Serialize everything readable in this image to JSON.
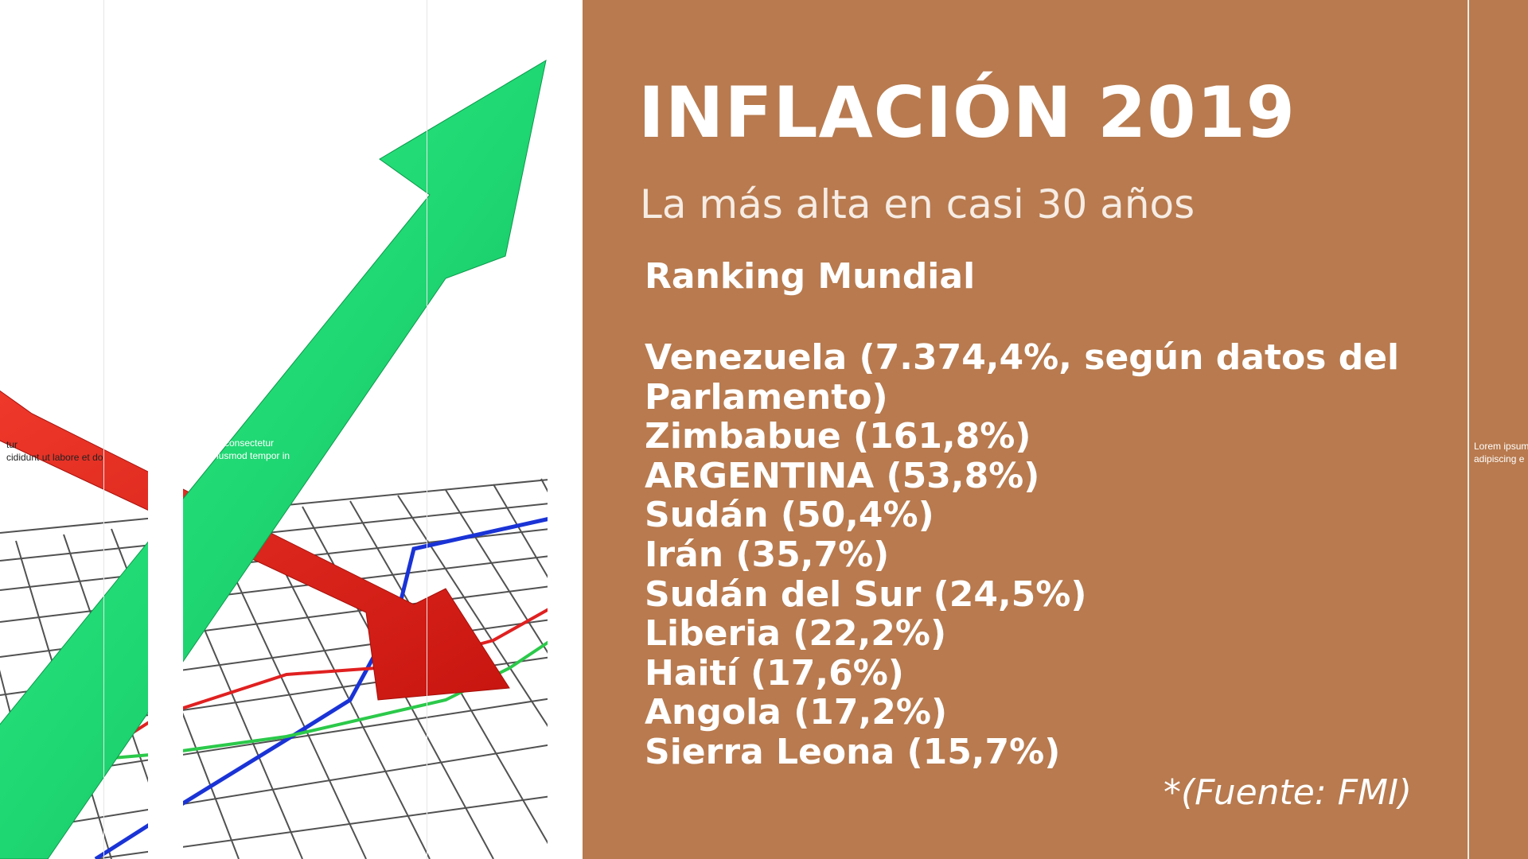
{
  "slide": {
    "title": "INFLACIÓN 2019",
    "subtitle": "La más alta en casi 30 años",
    "ranking_heading": "Ranking Mundial",
    "ranking": [
      "Venezuela (7.374,4%, según datos del Parlamento)",
      "Zimbabue (161,8%)",
      "ARGENTINA (53,8%)",
      "Sudán (50,4%)",
      "Irán (35,7%)",
      "Sudán del Sur (24,5%)",
      "Liberia (22,2%)",
      "Haití (17,6%)",
      "Angola (17,2%)",
      "Sierra Leona (15,7%)"
    ],
    "source": "*(Fuente: FMI)"
  },
  "background_fragments": {
    "left_a": "tur\ncididunt ut labore et do",
    "left_b": "t, consectetur\niusmod tempor in",
    "right": "Lorem ipsum\nadipiscing e"
  },
  "colors": {
    "panel": "#B87A4E",
    "green_arrow": "#1FD873",
    "red_arrow": "#E0231B",
    "blue_line": "#1A33D6",
    "green_line": "#2BC94A",
    "red_line": "#E02020"
  },
  "icons": [
    "green-up-arrow",
    "red-down-arrow",
    "grid-floor"
  ]
}
